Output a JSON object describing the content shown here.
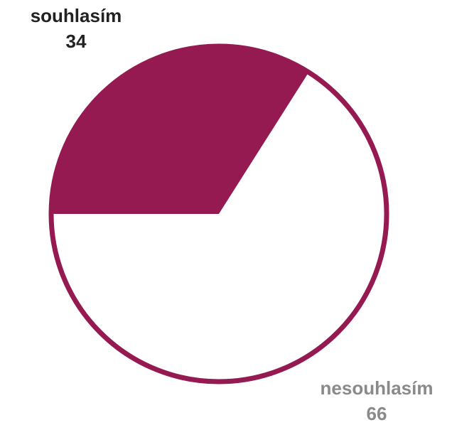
{
  "chart_data": {
    "type": "pie",
    "title": "",
    "slices": [
      {
        "label": "souhlasím",
        "value": 34,
        "color": "#961a52",
        "label_color": "#222222"
      },
      {
        "label": "nesouhlasím",
        "value": 66,
        "color": "#ffffff",
        "label_color": "#8a8a8a"
      }
    ],
    "border_color": "#961a52",
    "start_angle_deg": 180,
    "direction": "clockwise"
  }
}
